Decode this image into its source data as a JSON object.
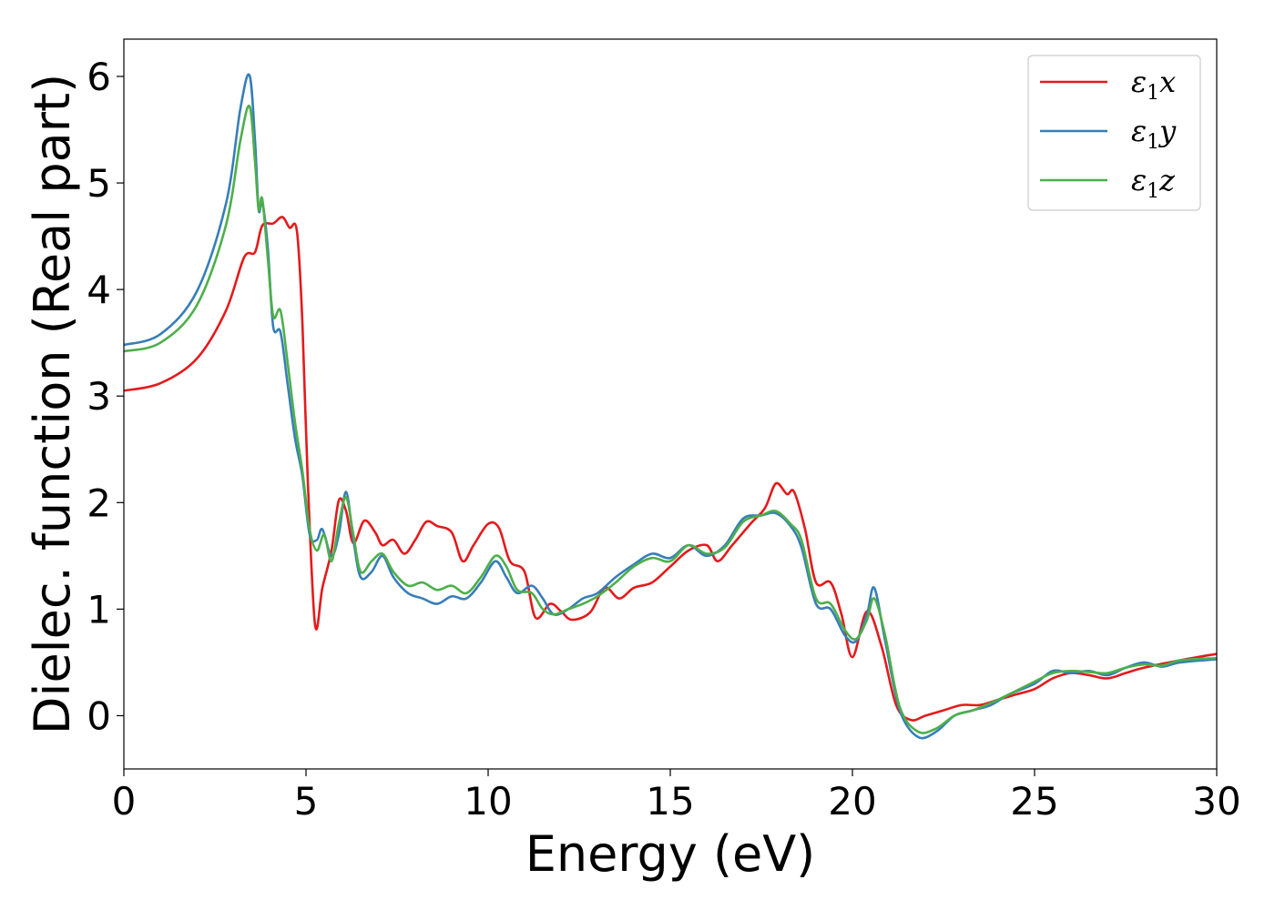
{
  "chart_data": {
    "type": "line",
    "xlabel": "Energy (eV)",
    "ylabel": "Dielec. function (Real part)",
    "xlim": [
      0,
      30
    ],
    "ylim": [
      -0.5,
      6.35
    ],
    "xticks": [
      0,
      5,
      10,
      15,
      20,
      25,
      30
    ],
    "yticks": [
      0,
      1,
      2,
      3,
      4,
      5,
      6
    ],
    "xtick_labels": [
      "0",
      "5",
      "10",
      "15",
      "20",
      "25",
      "30"
    ],
    "ytick_labels": [
      "0",
      "1",
      "2",
      "3",
      "4",
      "5",
      "6"
    ],
    "grid": false,
    "legend_position": "top-right",
    "series": [
      {
        "name": "ε₁x",
        "legend_base": "ε",
        "legend_sub": "1",
        "legend_var": "x",
        "color": "#e41a1c",
        "points": [
          [
            0,
            3.05
          ],
          [
            1,
            3.12
          ],
          [
            2,
            3.35
          ],
          [
            2.8,
            3.8
          ],
          [
            3.3,
            4.3
          ],
          [
            3.6,
            4.35
          ],
          [
            3.8,
            4.6
          ],
          [
            4.1,
            4.62
          ],
          [
            4.35,
            4.68
          ],
          [
            4.55,
            4.58
          ],
          [
            4.75,
            4.55
          ],
          [
            4.9,
            3.7
          ],
          [
            5.05,
            2.2
          ],
          [
            5.25,
            0.85
          ],
          [
            5.45,
            1.2
          ],
          [
            5.7,
            1.55
          ],
          [
            5.9,
            2.02
          ],
          [
            6.1,
            1.92
          ],
          [
            6.3,
            1.62
          ],
          [
            6.6,
            1.83
          ],
          [
            6.9,
            1.72
          ],
          [
            7.1,
            1.6
          ],
          [
            7.4,
            1.65
          ],
          [
            7.7,
            1.52
          ],
          [
            8.0,
            1.65
          ],
          [
            8.3,
            1.82
          ],
          [
            8.6,
            1.78
          ],
          [
            9.0,
            1.72
          ],
          [
            9.3,
            1.45
          ],
          [
            9.6,
            1.6
          ],
          [
            10.0,
            1.8
          ],
          [
            10.3,
            1.76
          ],
          [
            10.6,
            1.45
          ],
          [
            11.0,
            1.35
          ],
          [
            11.3,
            0.92
          ],
          [
            11.7,
            1.05
          ],
          [
            12.0,
            0.98
          ],
          [
            12.3,
            0.9
          ],
          [
            12.8,
            0.97
          ],
          [
            13.2,
            1.2
          ],
          [
            13.6,
            1.1
          ],
          [
            14.0,
            1.2
          ],
          [
            14.5,
            1.25
          ],
          [
            15.0,
            1.4
          ],
          [
            15.5,
            1.55
          ],
          [
            16.0,
            1.6
          ],
          [
            16.3,
            1.45
          ],
          [
            16.7,
            1.6
          ],
          [
            17.2,
            1.8
          ],
          [
            17.6,
            1.95
          ],
          [
            17.9,
            2.18
          ],
          [
            18.2,
            2.08
          ],
          [
            18.4,
            2.1
          ],
          [
            18.7,
            1.75
          ],
          [
            19.0,
            1.25
          ],
          [
            19.4,
            1.25
          ],
          [
            19.7,
            0.95
          ],
          [
            20.0,
            0.55
          ],
          [
            20.4,
            0.98
          ],
          [
            20.8,
            0.65
          ],
          [
            21.2,
            0.1
          ],
          [
            21.6,
            -0.04
          ],
          [
            22.0,
            0.0
          ],
          [
            22.5,
            0.05
          ],
          [
            23.0,
            0.1
          ],
          [
            23.5,
            0.1
          ],
          [
            24.0,
            0.15
          ],
          [
            24.5,
            0.2
          ],
          [
            25.0,
            0.25
          ],
          [
            25.5,
            0.35
          ],
          [
            26.0,
            0.4
          ],
          [
            26.5,
            0.38
          ],
          [
            27.0,
            0.35
          ],
          [
            27.5,
            0.4
          ],
          [
            28.0,
            0.45
          ],
          [
            29.0,
            0.52
          ],
          [
            30.0,
            0.58
          ]
        ]
      },
      {
        "name": "ε₁y",
        "legend_base": "ε",
        "legend_sub": "1",
        "legend_var": "y",
        "color": "#377eb8",
        "points": [
          [
            0,
            3.48
          ],
          [
            1,
            3.58
          ],
          [
            2,
            3.98
          ],
          [
            2.8,
            4.8
          ],
          [
            3.2,
            5.7
          ],
          [
            3.45,
            6.01
          ],
          [
            3.6,
            5.4
          ],
          [
            3.7,
            4.75
          ],
          [
            3.8,
            4.82
          ],
          [
            3.95,
            4.4
          ],
          [
            4.1,
            3.65
          ],
          [
            4.3,
            3.6
          ],
          [
            4.5,
            3.1
          ],
          [
            4.7,
            2.6
          ],
          [
            4.9,
            2.25
          ],
          [
            5.1,
            1.7
          ],
          [
            5.3,
            1.65
          ],
          [
            5.45,
            1.75
          ],
          [
            5.7,
            1.5
          ],
          [
            5.9,
            1.7
          ],
          [
            6.1,
            2.1
          ],
          [
            6.3,
            1.65
          ],
          [
            6.5,
            1.3
          ],
          [
            6.8,
            1.35
          ],
          [
            7.1,
            1.5
          ],
          [
            7.4,
            1.3
          ],
          [
            7.8,
            1.15
          ],
          [
            8.2,
            1.1
          ],
          [
            8.6,
            1.05
          ],
          [
            9.0,
            1.12
          ],
          [
            9.4,
            1.1
          ],
          [
            9.8,
            1.25
          ],
          [
            10.2,
            1.45
          ],
          [
            10.5,
            1.3
          ],
          [
            10.8,
            1.15
          ],
          [
            11.2,
            1.22
          ],
          [
            11.5,
            1.1
          ],
          [
            11.8,
            0.95
          ],
          [
            12.2,
            1.0
          ],
          [
            12.6,
            1.1
          ],
          [
            13.0,
            1.15
          ],
          [
            13.5,
            1.3
          ],
          [
            14.0,
            1.42
          ],
          [
            14.5,
            1.52
          ],
          [
            15.0,
            1.48
          ],
          [
            15.5,
            1.6
          ],
          [
            16.0,
            1.5
          ],
          [
            16.5,
            1.6
          ],
          [
            17.0,
            1.85
          ],
          [
            17.5,
            1.88
          ],
          [
            17.9,
            1.9
          ],
          [
            18.3,
            1.78
          ],
          [
            18.6,
            1.58
          ],
          [
            19.0,
            1.05
          ],
          [
            19.4,
            1.0
          ],
          [
            19.8,
            0.75
          ],
          [
            20.1,
            0.7
          ],
          [
            20.4,
            0.95
          ],
          [
            20.6,
            1.2
          ],
          [
            20.9,
            0.7
          ],
          [
            21.3,
            0.05
          ],
          [
            21.8,
            -0.2
          ],
          [
            22.3,
            -0.15
          ],
          [
            22.8,
            0.0
          ],
          [
            23.3,
            0.05
          ],
          [
            23.8,
            0.1
          ],
          [
            24.3,
            0.2
          ],
          [
            25.0,
            0.3
          ],
          [
            25.5,
            0.42
          ],
          [
            26.0,
            0.4
          ],
          [
            26.5,
            0.42
          ],
          [
            27.0,
            0.38
          ],
          [
            27.5,
            0.45
          ],
          [
            28.0,
            0.5
          ],
          [
            28.5,
            0.46
          ],
          [
            29.0,
            0.5
          ],
          [
            30.0,
            0.53
          ]
        ]
      },
      {
        "name": "ε₁z",
        "legend_base": "ε",
        "legend_sub": "1",
        "legend_var": "z",
        "color": "#4daf4a",
        "points": [
          [
            0,
            3.42
          ],
          [
            1,
            3.5
          ],
          [
            2,
            3.85
          ],
          [
            2.8,
            4.6
          ],
          [
            3.2,
            5.4
          ],
          [
            3.45,
            5.72
          ],
          [
            3.6,
            5.2
          ],
          [
            3.7,
            4.75
          ],
          [
            3.8,
            4.85
          ],
          [
            3.95,
            4.3
          ],
          [
            4.1,
            3.75
          ],
          [
            4.3,
            3.8
          ],
          [
            4.5,
            3.3
          ],
          [
            4.7,
            2.75
          ],
          [
            4.9,
            2.3
          ],
          [
            5.1,
            1.75
          ],
          [
            5.3,
            1.55
          ],
          [
            5.5,
            1.7
          ],
          [
            5.7,
            1.45
          ],
          [
            5.9,
            1.8
          ],
          [
            6.1,
            2.05
          ],
          [
            6.3,
            1.7
          ],
          [
            6.5,
            1.35
          ],
          [
            6.8,
            1.45
          ],
          [
            7.1,
            1.52
          ],
          [
            7.4,
            1.35
          ],
          [
            7.8,
            1.22
          ],
          [
            8.2,
            1.25
          ],
          [
            8.6,
            1.18
          ],
          [
            9.0,
            1.22
          ],
          [
            9.4,
            1.15
          ],
          [
            9.8,
            1.3
          ],
          [
            10.2,
            1.5
          ],
          [
            10.5,
            1.4
          ],
          [
            10.8,
            1.18
          ],
          [
            11.2,
            1.15
          ],
          [
            11.5,
            1.0
          ],
          [
            11.8,
            0.95
          ],
          [
            12.2,
            1.0
          ],
          [
            12.6,
            1.05
          ],
          [
            13.0,
            1.12
          ],
          [
            13.5,
            1.25
          ],
          [
            14.0,
            1.4
          ],
          [
            14.5,
            1.48
          ],
          [
            15.0,
            1.45
          ],
          [
            15.5,
            1.6
          ],
          [
            16.0,
            1.52
          ],
          [
            16.5,
            1.58
          ],
          [
            17.0,
            1.82
          ],
          [
            17.5,
            1.88
          ],
          [
            17.9,
            1.92
          ],
          [
            18.3,
            1.8
          ],
          [
            18.6,
            1.65
          ],
          [
            19.0,
            1.1
          ],
          [
            19.4,
            1.05
          ],
          [
            19.8,
            0.8
          ],
          [
            20.1,
            0.72
          ],
          [
            20.4,
            0.9
          ],
          [
            20.6,
            1.1
          ],
          [
            20.9,
            0.75
          ],
          [
            21.3,
            0.08
          ],
          [
            21.8,
            -0.15
          ],
          [
            22.3,
            -0.12
          ],
          [
            22.8,
            0.0
          ],
          [
            23.3,
            0.05
          ],
          [
            23.8,
            0.12
          ],
          [
            24.3,
            0.2
          ],
          [
            25.0,
            0.32
          ],
          [
            25.5,
            0.4
          ],
          [
            26.0,
            0.42
          ],
          [
            26.5,
            0.41
          ],
          [
            27.0,
            0.4
          ],
          [
            27.5,
            0.45
          ],
          [
            28.0,
            0.48
          ],
          [
            28.5,
            0.47
          ],
          [
            29.0,
            0.52
          ],
          [
            30.0,
            0.54
          ]
        ]
      }
    ]
  }
}
